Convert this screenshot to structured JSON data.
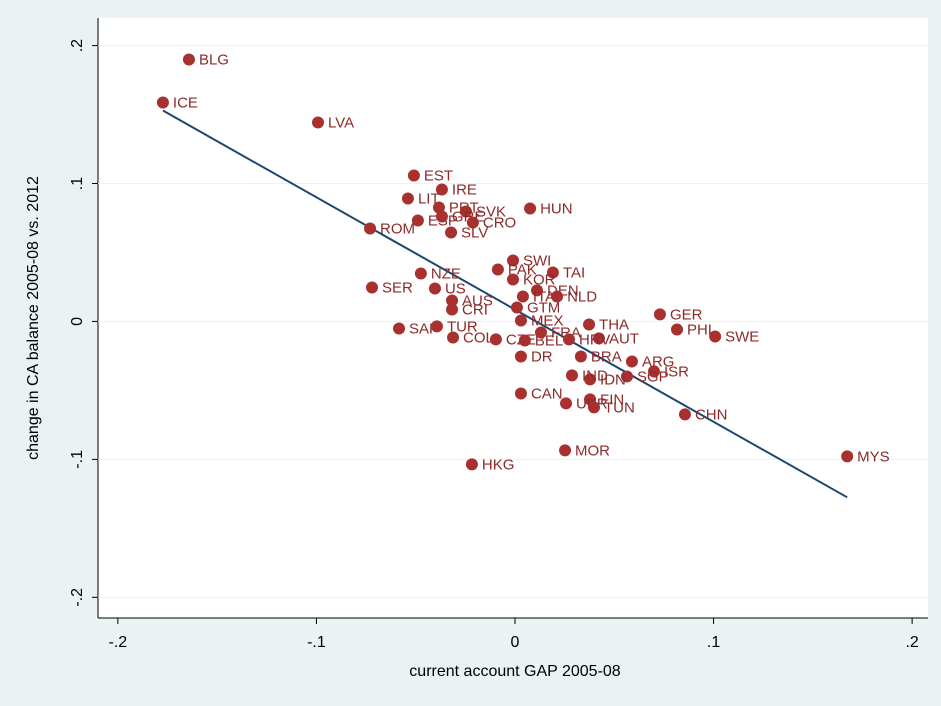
{
  "chart_data": {
    "type": "scatter",
    "x_label": "current account GAP 2005-08",
    "y_label": "change in CA balance 2005-08 vs. 2012",
    "xlim": [
      -0.21,
      0.208
    ],
    "ylim": [
      -0.215,
      0.22
    ],
    "xticks": [
      {
        "value": -0.2,
        "label": "-.2"
      },
      {
        "value": -0.1,
        "label": "-.1"
      },
      0,
      {
        "value": 0.1,
        "label": ".1"
      },
      {
        "value": 0.2,
        "label": ".2"
      }
    ],
    "yticks": [
      {
        "value": -0.2,
        "label": "-.2"
      },
      {
        "value": -0.1,
        "label": "-.1"
      },
      0,
      {
        "value": 0.1,
        "label": ".1"
      },
      {
        "value": 0.2,
        "label": ".2"
      }
    ],
    "color": "#a8302e",
    "labels": [
      "BLG",
      "ICE",
      "LVA",
      "EST",
      "IRE",
      "LIT",
      "PRT",
      "SVK",
      "HUN",
      "ESP",
      "GRE",
      "CRO",
      "ROM",
      "SLV",
      "SWI",
      "PAK",
      "TAI",
      "KOR",
      "DEN",
      "ITA",
      "NLD",
      "NZE",
      "SER",
      "US",
      "AUS",
      "CRI",
      "GTM",
      "MEX",
      "SAF",
      "TUR",
      "THA",
      "AUT",
      "GER",
      "PHL",
      "SWE",
      "COL",
      "CZE",
      "BEL",
      "FRA",
      "HRV",
      "DR",
      "BRA",
      "ARG",
      "ISR",
      "SGP",
      "IDN",
      "IND",
      "CAN",
      "FIN",
      "UKR",
      "TUN",
      "CHN",
      "MYS",
      "MOR",
      "HKG"
    ],
    "x": [
      -0.1642,
      -0.1773,
      -0.0992,
      -0.0509,
      -0.0368,
      -0.0539,
      -0.0383,
      -0.0247,
      0.0076,
      -0.0489,
      -0.0368,
      -0.0212,
      -0.073,
      -0.0322,
      -0.001,
      -0.0086,
      0.0191,
      -0.001,
      0.0111,
      0.004,
      0.0212,
      -0.0474,
      -0.072,
      -0.0403,
      -0.0317,
      -0.0317,
      0.001,
      0.003,
      -0.0584,
      -0.0393,
      0.0373,
      0.0423,
      0.073,
      0.0816,
      0.1008,
      -0.0312,
      -0.0096,
      0.005,
      0.0131,
      0.0272,
      0.003,
      0.0332,
      0.0589,
      0.07,
      0.0564,
      0.0378,
      0.0287,
      0.003,
      0.0378,
      0.0257,
      0.0398,
      0.0856,
      0.1673,
      0.0252,
      -0.0217
    ],
    "values": [
      0.1899,
      0.1587,
      0.1442,
      0.1058,
      0.0957,
      0.0891,
      0.0826,
      0.0797,
      0.0819,
      0.0732,
      0.0761,
      0.0717,
      0.0674,
      0.0645,
      0.0442,
      0.0377,
      0.0355,
      0.0304,
      0.0225,
      0.0181,
      0.0181,
      0.0348,
      0.0246,
      0.0239,
      0.0152,
      0.0087,
      0.0101,
      0.0007,
      -0.0051,
      -0.0036,
      -0.0022,
      -0.0123,
      0.0051,
      -0.0058,
      -0.0109,
      -0.0116,
      -0.013,
      -0.0138,
      -0.008,
      -0.013,
      -0.0254,
      -0.0254,
      -0.029,
      -0.0362,
      -0.0399,
      -0.042,
      -0.0391,
      -0.0522,
      -0.0565,
      -0.0594,
      -0.0623,
      -0.0674,
      -0.0978,
      -0.0935,
      -0.1036
    ],
    "fit_line": {
      "x": [
        -0.1773,
        0.1673
      ],
      "values": [
        0.1529,
        -0.1275
      ],
      "color": "#1a476f"
    }
  }
}
